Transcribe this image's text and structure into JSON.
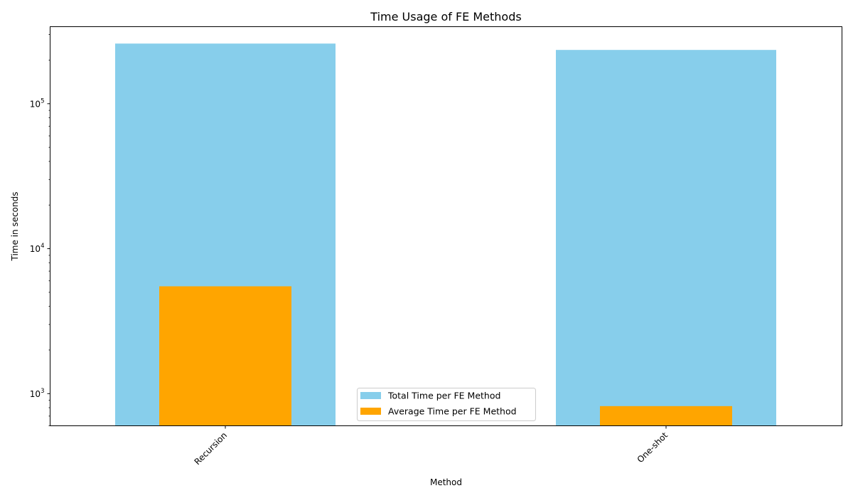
{
  "chart_data": {
    "type": "bar",
    "title": "Time Usage of FE Methods",
    "xlabel": "Method",
    "ylabel": "Time in seconds",
    "yscale": "log",
    "ylim": [
      600,
      340000
    ],
    "categories": [
      "Recursion",
      "One-shot"
    ],
    "series": [
      {
        "name": "Total Time per FE Method",
        "values": [
          260000,
          235000
        ],
        "color": "#87ceeb"
      },
      {
        "name": "Average Time per FE Method",
        "values": [
          5500,
          820
        ],
        "color": "#ffa500"
      }
    ],
    "yticks": [
      {
        "value": 1000,
        "base": "10",
        "exp": "3"
      },
      {
        "value": 10000,
        "base": "10",
        "exp": "4"
      },
      {
        "value": 100000,
        "base": "10",
        "exp": "5"
      }
    ],
    "legend_position": "lower center",
    "grid": false
  }
}
